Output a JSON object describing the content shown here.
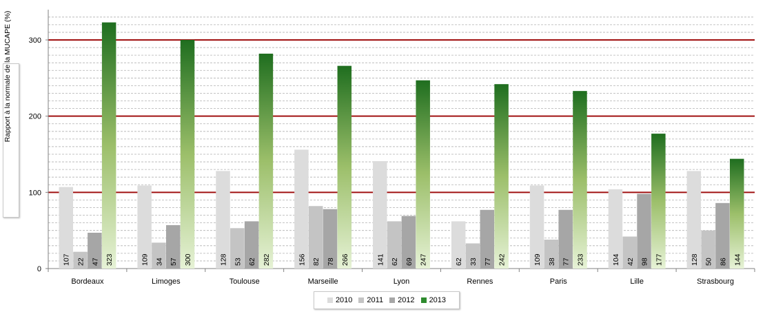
{
  "chart_data": {
    "type": "bar",
    "ylabel": "Rapport à la normale de la MUCAPE (%)",
    "ylim": [
      0,
      340
    ],
    "yticks": [
      0,
      100,
      200,
      300
    ],
    "grid": true,
    "reference_lines": [
      100,
      200,
      300
    ],
    "legend_position": "bottom",
    "categories": [
      "Bordeaux",
      "Limoges",
      "Toulouse",
      "Marseille",
      "Lyon",
      "Rennes",
      "Paris",
      "Lille",
      "Strasbourg"
    ],
    "series": [
      {
        "name": "2010",
        "color": "#dcdcdc",
        "values": [
          107,
          109,
          128,
          156,
          141,
          62,
          109,
          104,
          128
        ]
      },
      {
        "name": "2011",
        "color": "#c4c4c4",
        "values": [
          22,
          34,
          53,
          82,
          62,
          33,
          38,
          42,
          50
        ]
      },
      {
        "name": "2012",
        "color": "#a6a6a6",
        "values": [
          47,
          57,
          62,
          78,
          69,
          77,
          77,
          98,
          86
        ]
      },
      {
        "name": "2013",
        "color": "#2e8b2e",
        "values": [
          323,
          300,
          282,
          266,
          247,
          242,
          233,
          177,
          144
        ]
      }
    ]
  }
}
